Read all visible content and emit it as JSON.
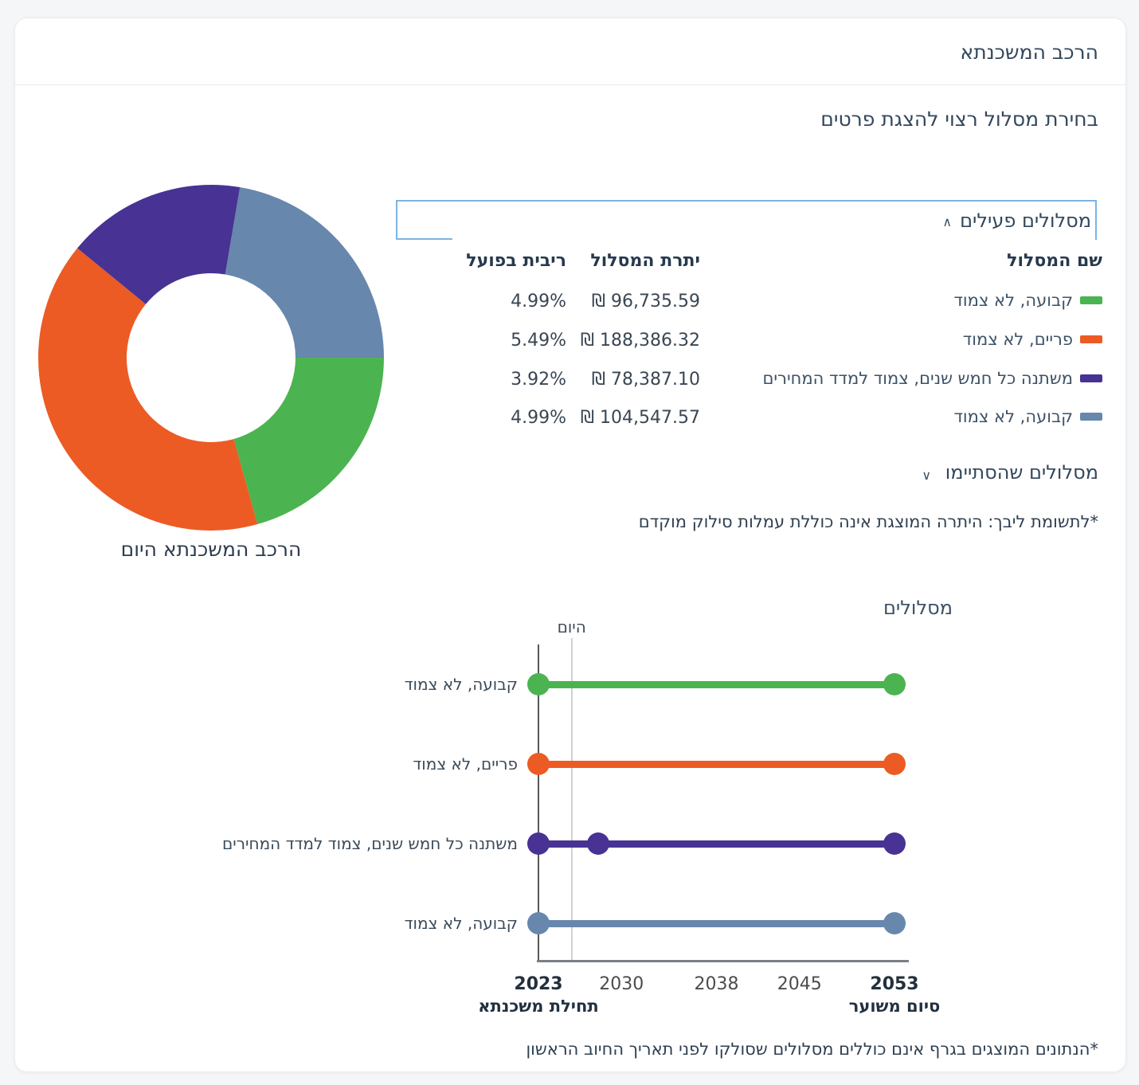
{
  "page": {
    "title": "הרכב המשכנתא",
    "subtitle": "בחירת מסלול רצוי להצגת פרטים"
  },
  "active_tracks": {
    "section_title": "מסלולים פעילים",
    "collapse_icon": "∧",
    "columns": {
      "name": "שם המסלול",
      "balance": "יתרת המסלול",
      "rate": "ריבית בפועל"
    },
    "rows": [
      {
        "name": "קבועה, לא צמוד",
        "balance": "96,735.59 ₪",
        "rate": "4.99%",
        "color": "#4bb450"
      },
      {
        "name": "פריים, לא צמוד",
        "balance": "188,386.32 ₪",
        "rate": "5.49%",
        "color": "#ec5b24"
      },
      {
        "name": "משתנה כל חמש שנים, צמוד למדד המחירים",
        "balance": "78,387.10 ₪",
        "rate": "3.92%",
        "color": "#483293"
      },
      {
        "name": "קבועה, לא צמוד",
        "balance": "104,547.57 ₪",
        "rate": "4.99%",
        "color": "#6787ad"
      }
    ]
  },
  "finished_tracks": {
    "section_title": "מסלולים שהסתיימו",
    "expand_icon": "∨"
  },
  "balance_note": "*לתשומת ליבך: היתרה המוצגת אינה כוללת עמלות סילוק מוקדם",
  "chart_note": "*הנתונים המוצגים בגרף אינם כוללים מסלולים שסולקו לפני תאריך החיוב הראשון",
  "chart_data": [
    {
      "type": "pie",
      "donut": true,
      "title": "הרכב המשכנתא היום",
      "start_angle_deg": 9.6,
      "inner_radius_ratio": 0.49,
      "segments": [
        {
          "label": "קבועה, לא צמוד",
          "value": 104547.57,
          "color": "#6787ad"
        },
        {
          "label": "קבועה, לא צמוד",
          "value": 96735.59,
          "color": "#4bb450"
        },
        {
          "label": "פריים, לא צמוד",
          "value": 188386.32,
          "color": "#ec5b24"
        },
        {
          "label": "משתנה כל חמש שנים, צמוד למדד המחירים",
          "value": 78387.1,
          "color": "#483293"
        }
      ]
    },
    {
      "type": "timeline",
      "title": "מסלולים",
      "today_label": "היום",
      "today_year": 2025.8,
      "x_min": 2023,
      "x_max": 2053,
      "ticks": [
        {
          "year": 2023,
          "bold": true,
          "sublabel": "תחילת משכנתא"
        },
        {
          "year": 2030,
          "bold": false,
          "sublabel": ""
        },
        {
          "year": 2038,
          "bold": false,
          "sublabel": ""
        },
        {
          "year": 2045,
          "bold": false,
          "sublabel": ""
        },
        {
          "year": 2053,
          "bold": true,
          "sublabel": "סיום משוער"
        }
      ],
      "rows": [
        {
          "label": "קבועה, לא צמוד",
          "color": "#4bb450",
          "start": 2023,
          "end": 2053,
          "milestones": [
            2023,
            2053
          ]
        },
        {
          "label": "פריים, לא צמוד",
          "color": "#ec5b24",
          "start": 2023,
          "end": 2053,
          "milestones": [
            2023,
            2053
          ]
        },
        {
          "label": "משתנה כל חמש שנים, צמוד למדד המחירים",
          "color": "#483293",
          "start": 2023,
          "end": 2053,
          "milestones": [
            2023,
            2028,
            2053
          ]
        },
        {
          "label": "קבועה, לא צמוד",
          "color": "#6787ad",
          "start": 2023,
          "end": 2053,
          "milestones": [
            2023,
            2053
          ]
        }
      ]
    }
  ]
}
